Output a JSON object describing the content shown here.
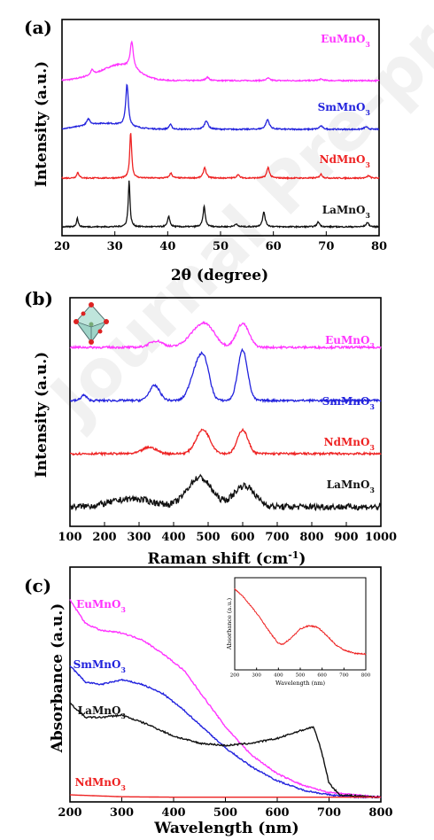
{
  "watermark": "Journal Pre-proof",
  "chart_data": [
    {
      "type": "line",
      "panel_label": "(a)",
      "xlabel": "2θ (degree)",
      "ylabel": "Intensity (a.u.)",
      "xlim": [
        20,
        80
      ],
      "xticks": [
        20,
        30,
        40,
        50,
        60,
        70,
        80
      ],
      "y_ticks_shown": false,
      "series": [
        {
          "name": "EuMnO3",
          "color": "#ff33ff",
          "offset": 3.0,
          "broad": [
            [
              31,
              0.32,
              3.2
            ],
            [
              25,
              0.05,
              2.5
            ]
          ],
          "peaks": [
            [
              33.2,
              0.55,
              0.35
            ],
            [
              25.7,
              0.1,
              0.3
            ],
            [
              47.5,
              0.07,
              0.4
            ],
            [
              59,
              0.05,
              0.4
            ],
            [
              69,
              0.03,
              0.5
            ]
          ]
        },
        {
          "name": "SmMnO3",
          "color": "#2222dd",
          "offset": 2.0,
          "broad": [
            [
              28,
              0.12,
              4
            ]
          ],
          "peaks": [
            [
              32.3,
              0.85,
              0.3
            ],
            [
              25,
              0.12,
              0.4
            ],
            [
              40.5,
              0.1,
              0.3
            ],
            [
              47.3,
              0.18,
              0.4
            ],
            [
              58.9,
              0.2,
              0.4
            ],
            [
              69,
              0.07,
              0.4
            ],
            [
              77.5,
              0.05,
              0.4
            ]
          ]
        },
        {
          "name": "NdMnO3",
          "color": "#ee2222",
          "offset": 1.0,
          "broad": [],
          "peaks": [
            [
              33.0,
              0.95,
              0.22
            ],
            [
              23.0,
              0.12,
              0.25
            ],
            [
              40.6,
              0.1,
              0.3
            ],
            [
              47.0,
              0.22,
              0.3
            ],
            [
              53.3,
              0.07,
              0.3
            ],
            [
              59.0,
              0.22,
              0.3
            ],
            [
              69.0,
              0.08,
              0.3
            ],
            [
              78.0,
              0.05,
              0.3
            ]
          ]
        },
        {
          "name": "LaMnO3",
          "color": "#111111",
          "offset": 0.0,
          "broad": [],
          "peaks": [
            [
              32.7,
              0.95,
              0.2
            ],
            [
              22.9,
              0.18,
              0.2
            ],
            [
              40.2,
              0.22,
              0.25
            ],
            [
              46.9,
              0.42,
              0.25
            ],
            [
              52.9,
              0.06,
              0.3
            ],
            [
              58.2,
              0.3,
              0.3
            ],
            [
              68.5,
              0.1,
              0.3
            ],
            [
              77.8,
              0.09,
              0.3
            ]
          ]
        }
      ]
    },
    {
      "type": "line",
      "panel_label": "(b)",
      "xlabel": "Raman shift (cm",
      "xlabel_sup": "-1",
      "xlabel_end": ")",
      "ylabel": "Intensity (a.u.)",
      "xlim": [
        100,
        1000
      ],
      "xticks": [
        100,
        200,
        300,
        400,
        500,
        600,
        700,
        800,
        900,
        1000
      ],
      "y_ticks_shown": false,
      "series": [
        {
          "name": "EuMnO3",
          "color": "#ff33ff",
          "offset": 3.0,
          "noise": 0.04,
          "peaks": [
            [
              350,
              0.12,
              20
            ],
            [
              470,
              0.28,
              30
            ],
            [
              500,
              0.25,
              25
            ],
            [
              600,
              0.45,
              18
            ]
          ]
        },
        {
          "name": "SmMnO3",
          "color": "#2222dd",
          "offset": 2.0,
          "noise": 0.04,
          "peaks": [
            [
              140,
              0.1,
              8
            ],
            [
              345,
              0.28,
              15
            ],
            [
              465,
              0.55,
              18
            ],
            [
              490,
              0.62,
              15
            ],
            [
              600,
              0.95,
              14
            ]
          ]
        },
        {
          "name": "NdMnO3",
          "color": "#ee2222",
          "offset": 1.0,
          "noise": 0.04,
          "peaks": [
            [
              330,
              0.12,
              20
            ],
            [
              485,
              0.45,
              20
            ],
            [
              600,
              0.45,
              15
            ]
          ]
        },
        {
          "name": "LaMnO3",
          "color": "#111111",
          "offset": 0.0,
          "noise": 0.12,
          "peaks": [
            [
              280,
              0.15,
              60
            ],
            [
              475,
              0.55,
              35
            ],
            [
              605,
              0.4,
              30
            ]
          ]
        }
      ]
    },
    {
      "type": "line",
      "panel_label": "(c)",
      "xlabel": "Wavelength (nm)",
      "ylabel": "Absorbance (a.u.)",
      "xlim": [
        200,
        800
      ],
      "xticks": [
        200,
        300,
        400,
        500,
        600,
        700,
        800
      ],
      "ylim": [
        0,
        1
      ],
      "y_ticks_shown": false,
      "series": [
        {
          "name": "EuMnO3",
          "color": "#ff33ff",
          "noise": 0.006,
          "x": [
            200,
            230,
            260,
            300,
            340,
            380,
            420,
            460,
            500,
            550,
            600,
            650,
            700,
            750,
            800
          ],
          "y": [
            0.86,
            0.76,
            0.73,
            0.72,
            0.69,
            0.63,
            0.56,
            0.44,
            0.32,
            0.2,
            0.12,
            0.07,
            0.04,
            0.03,
            0.02
          ]
        },
        {
          "name": "SmMnO3",
          "color": "#2222dd",
          "noise": 0.006,
          "x": [
            200,
            230,
            260,
            300,
            340,
            380,
            420,
            460,
            500,
            550,
            600,
            650,
            700,
            750,
            800
          ],
          "y": [
            0.58,
            0.51,
            0.5,
            0.52,
            0.5,
            0.46,
            0.39,
            0.31,
            0.23,
            0.15,
            0.09,
            0.05,
            0.03,
            0.02,
            0.02
          ]
        },
        {
          "name": "LaMnO3",
          "color": "#111111",
          "noise": 0.007,
          "x": [
            200,
            230,
            260,
            300,
            350,
            400,
            450,
            500,
            550,
            600,
            640,
            670,
            685,
            700,
            720,
            800
          ],
          "y": [
            0.42,
            0.36,
            0.36,
            0.37,
            0.33,
            0.28,
            0.25,
            0.24,
            0.25,
            0.27,
            0.3,
            0.32,
            0.22,
            0.08,
            0.03,
            0.02
          ]
        },
        {
          "name": "NdMnO3",
          "color": "#ee2222",
          "noise": 0.0,
          "x": [
            200,
            300,
            400,
            500,
            600,
            700,
            800
          ],
          "y": [
            0.03,
            0.022,
            0.02,
            0.02,
            0.02,
            0.02,
            0.02
          ]
        }
      ],
      "inset": {
        "xlabel": "Wavelength (nm)",
        "ylabel": "Absorbance (a.u.)",
        "xlim": [
          200,
          800
        ],
        "xticks": [
          200,
          300,
          400,
          500,
          600,
          700,
          800
        ],
        "series": [
          {
            "name": "NdMnO3",
            "color": "#ee2222",
            "noise": 0.015,
            "x": [
              200,
              240,
              280,
              320,
              360,
              400,
              420,
              460,
              500,
              540,
              580,
              620,
              660,
              700,
              750,
              800
            ],
            "y": [
              0.95,
              0.85,
              0.72,
              0.58,
              0.42,
              0.28,
              0.27,
              0.35,
              0.46,
              0.5,
              0.48,
              0.38,
              0.27,
              0.2,
              0.16,
              0.15
            ]
          }
        ]
      }
    }
  ]
}
